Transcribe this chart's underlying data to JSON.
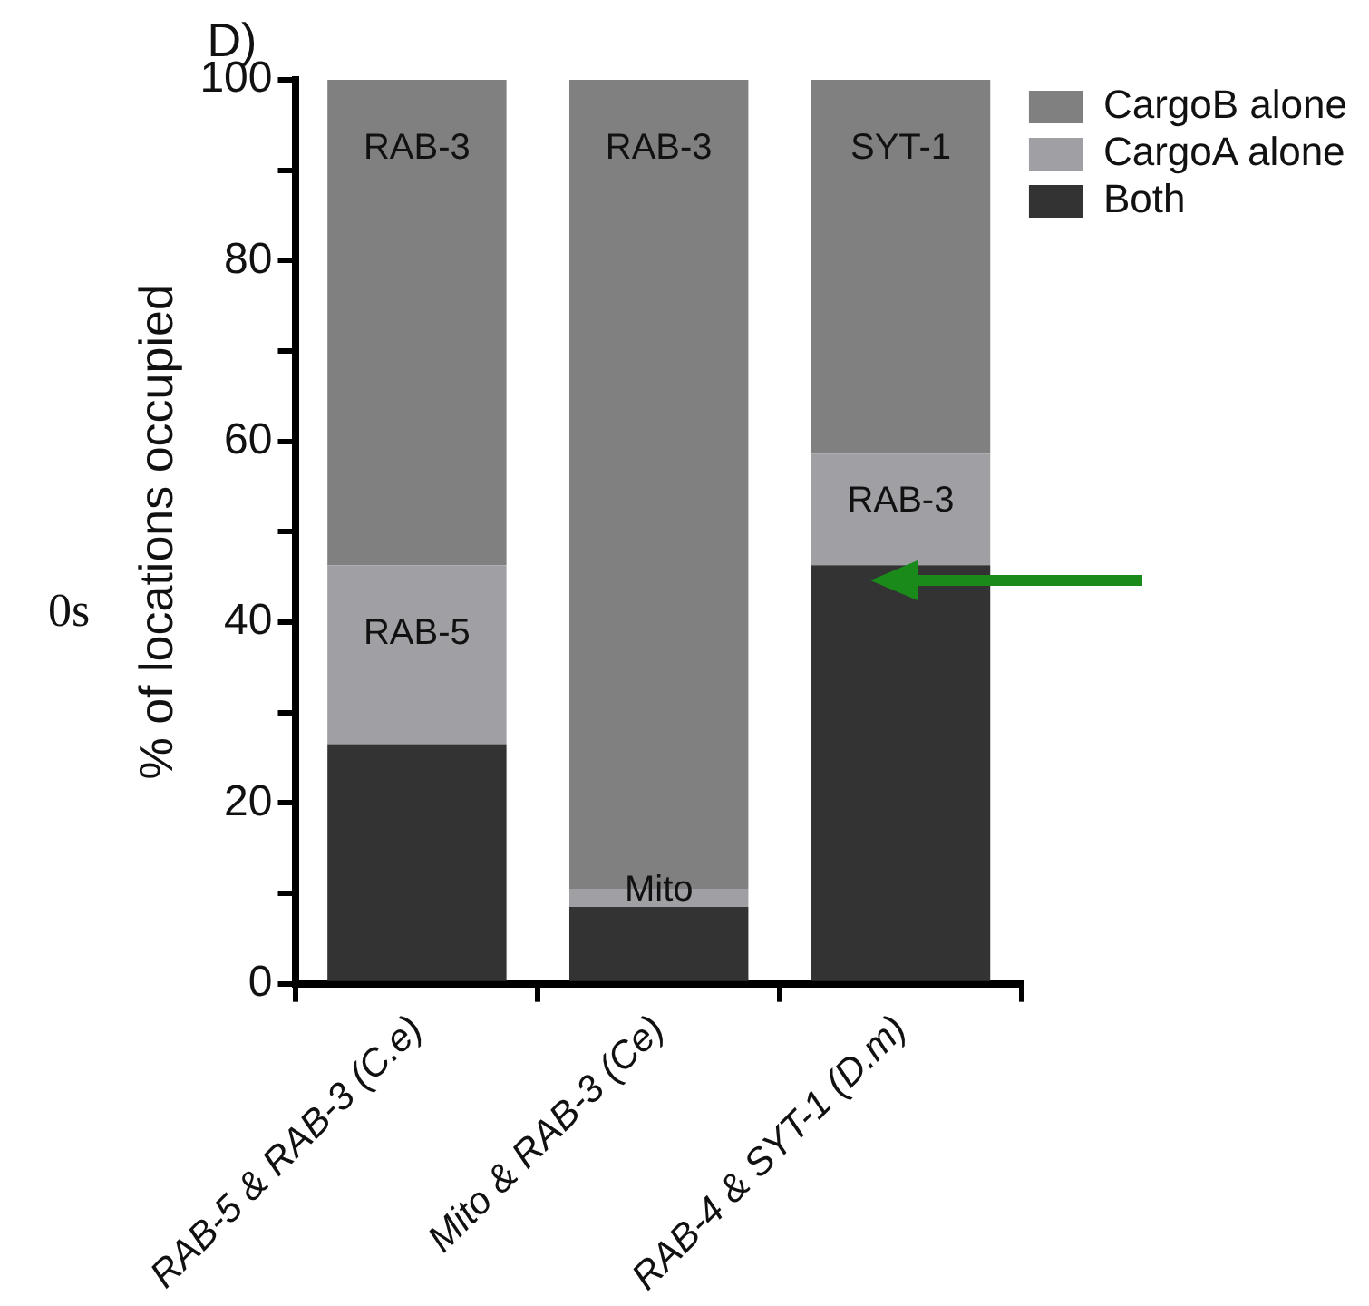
{
  "chart_data": {
    "type": "bar",
    "stacked": true,
    "ylabel": "% of locations occupied",
    "categories": [
      "RAB-5 & RAB-3 (C.e)",
      "Mito & RAB-3 (Ce)",
      "RAB-4 & SYT-1 (D.m)"
    ],
    "series": [
      {
        "name": "Both",
        "color": "#333333",
        "values": [
          26.5,
          8.5,
          46.3
        ]
      },
      {
        "name": "CargoA alone",
        "color": "#a0a0a4",
        "values": [
          19.8,
          2,
          12.3
        ]
      },
      {
        "name": "CargoB alone",
        "color": "#808080",
        "values": [
          53.7,
          89.5,
          41.4
        ]
      }
    ],
    "ylim": [
      0,
      100
    ],
    "yticks": [
      0,
      {
        "value": 10,
        "label": null
      },
      20,
      {
        "value": 30,
        "label": null
      },
      40,
      {
        "value": 50,
        "label": null
      },
      60,
      {
        "value": 70,
        "label": null
      },
      80,
      {
        "value": 90,
        "label": null
      },
      100
    ],
    "grid": false,
    "legend": "top right",
    "annotations": [
      "D)",
      "0s",
      "RAB-3",
      "RAB-5",
      "RAB-3",
      "Mito",
      "SYT-1",
      "RAB-3"
    ]
  }
}
